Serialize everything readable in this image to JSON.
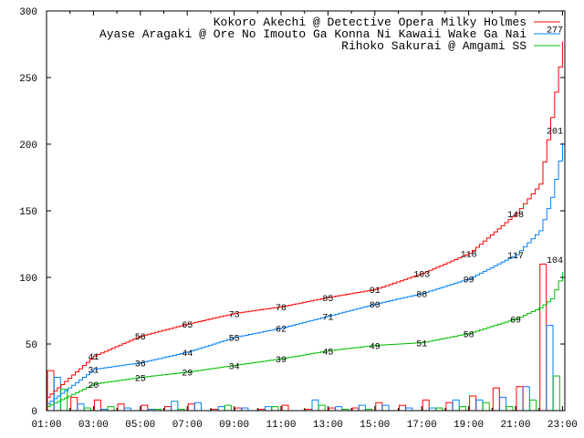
{
  "chart_data": {
    "type": "line",
    "title": "",
    "xlabel": "",
    "ylabel": "",
    "ylim": [
      0,
      300
    ],
    "xlim_hours": [
      1,
      23.1
    ],
    "yticks": [
      "0",
      "50",
      "100",
      "150",
      "200",
      "250",
      "300"
    ],
    "xticks": [
      "01:00",
      "03:00",
      "05:00",
      "07:00",
      "09:00",
      "11:00",
      "13:00",
      "15:00",
      "17:00",
      "19:00",
      "21:00",
      "23:00"
    ],
    "legend_position": "top-right",
    "series": [
      {
        "name": "Kokoro Akechi @ Detective Opera Milky Holmes",
        "color": "#ff0000",
        "cumulative_hours": [
          1,
          3,
          5,
          7,
          9,
          11,
          13,
          15,
          17,
          19,
          21,
          22,
          22.5,
          23
        ],
        "cumulative": [
          10,
          41,
          56,
          65,
          73,
          78,
          85,
          91,
          103,
          118,
          148,
          170,
          220,
          277
        ],
        "point_labels": [
          "41",
          "56",
          "65",
          "73",
          "78",
          "85",
          "91",
          "103",
          "118",
          "148",
          "277"
        ],
        "label_hours": [
          3,
          5,
          7,
          9,
          11,
          13,
          15,
          17,
          19,
          21,
          23
        ],
        "hourly": [
          30,
          10,
          8,
          5,
          4,
          3,
          5,
          1,
          2,
          1,
          4,
          1,
          2,
          2,
          6,
          4,
          8,
          6,
          11,
          17,
          18,
          110
        ]
      },
      {
        "name": "Ayase Aragaki @ Ore No Imouto Ga Konna Ni Kawaii Wake Ga Nai",
        "color": "#0080ff",
        "cumulative_hours": [
          1,
          3,
          5,
          7,
          9,
          11,
          13,
          15,
          17,
          19,
          21,
          22,
          22.5,
          23
        ],
        "cumulative": [
          5,
          31,
          36,
          44,
          55,
          62,
          71,
          80,
          88,
          99,
          117,
          135,
          160,
          201
        ],
        "point_labels": [
          "31",
          "36",
          "44",
          "55",
          "62",
          "71",
          "80",
          "88",
          "99",
          "117",
          "201"
        ],
        "label_hours": [
          3,
          5,
          7,
          9,
          11,
          13,
          15,
          17,
          19,
          21,
          23
        ],
        "hourly": [
          25,
          5,
          1,
          2,
          1,
          7,
          6,
          3,
          2,
          3,
          0,
          8,
          3,
          4,
          4,
          2,
          2,
          8,
          8,
          10,
          18,
          64
        ]
      },
      {
        "name": "Rihoko Sakurai @ Amgami SS",
        "color": "#00c000",
        "cumulative_hours": [
          1,
          3,
          5,
          7,
          9,
          11,
          13,
          15,
          17,
          19,
          21,
          22,
          22.5,
          23
        ],
        "cumulative": [
          3,
          20,
          25,
          29,
          34,
          39,
          45,
          49,
          51,
          58,
          69,
          77,
          84,
          104
        ],
        "point_labels": [
          "20",
          "25",
          "29",
          "34",
          "39",
          "45",
          "49",
          "51",
          "58",
          "69",
          "104"
        ],
        "label_hours": [
          3,
          5,
          7,
          9,
          11,
          13,
          15,
          17,
          19,
          21,
          23
        ],
        "hourly": [
          16,
          2,
          3,
          0,
          1,
          1,
          0,
          4,
          0,
          3,
          0,
          4,
          1,
          1,
          0,
          0,
          2,
          3,
          6,
          3,
          8,
          26
        ]
      }
    ]
  }
}
